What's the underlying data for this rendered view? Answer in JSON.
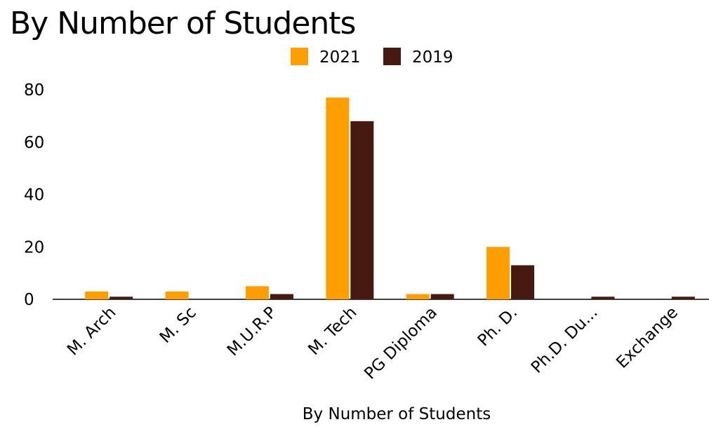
{
  "chart_data": {
    "type": "bar",
    "title": "By Number of Students",
    "xlabel": "By Number of Students",
    "ylabel": "",
    "categories": [
      "M. Arch",
      "M. Sc",
      "M.U.R.P",
      "M. Tech",
      "PG Diploma",
      "Ph. D.",
      "Ph.D. Du...",
      "Exchange"
    ],
    "series": [
      {
        "name": "2021",
        "color": "#FF9E00",
        "values": [
          3,
          3,
          5,
          77,
          2,
          20,
          0,
          0
        ]
      },
      {
        "name": "2019",
        "color": "#461A10",
        "values": [
          1,
          0,
          2,
          68,
          2,
          13,
          1,
          1
        ]
      }
    ],
    "yticks": [
      0,
      20,
      40,
      60,
      80
    ],
    "ylim": [
      0,
      80
    ],
    "grid": false,
    "legend": "top-center"
  }
}
